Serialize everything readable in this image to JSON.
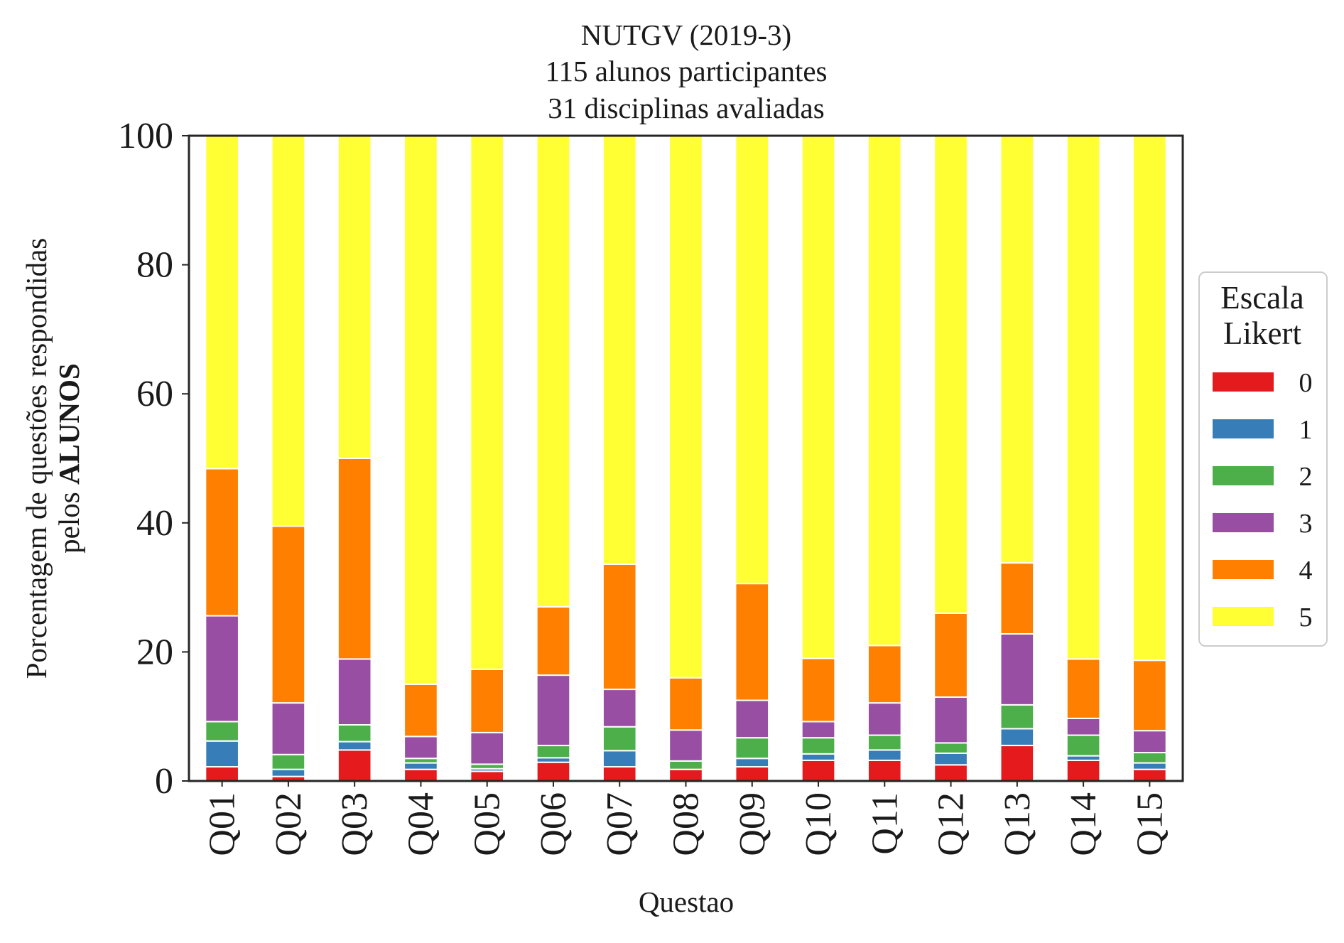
{
  "chart_data": {
    "type": "bar",
    "stacked": true,
    "title": [
      "NUTGV (2019-3)",
      "115 alunos participantes",
      "31 disciplinas avaliadas"
    ],
    "xlabel": "Questao",
    "ylabel": {
      "line1": "Porcentagem de questões respondidas",
      "line2_prefix": "pelos ",
      "line2_bold": "ALUNOS"
    },
    "ylim": [
      0,
      100
    ],
    "yticks": [
      "0",
      "20",
      "40",
      "60",
      "80",
      "100"
    ],
    "grid": false,
    "categories": [
      "Q01",
      "Q02",
      "Q03",
      "Q04",
      "Q05",
      "Q06",
      "Q07",
      "Q08",
      "Q09",
      "Q10",
      "Q11",
      "Q12",
      "Q13",
      "Q14",
      "Q15"
    ],
    "legend": {
      "title": [
        "Escala",
        "Likert"
      ],
      "placement": "right"
    },
    "series": [
      {
        "name": "0",
        "color": "#e41a1c",
        "values": [
          2.2,
          0.7,
          4.8,
          1.8,
          1.5,
          2.9,
          2.2,
          1.8,
          2.2,
          3.2,
          3.2,
          2.5,
          5.5,
          3.2,
          1.8
        ]
      },
      {
        "name": "1",
        "color": "#377eb8",
        "values": [
          4.0,
          1.1,
          1.3,
          1.0,
          0.4,
          0.7,
          2.5,
          0.0,
          1.3,
          1.0,
          1.6,
          1.8,
          2.6,
          0.7,
          1.0
        ]
      },
      {
        "name": "2",
        "color": "#4daf4a",
        "values": [
          3.0,
          2.3,
          2.6,
          0.7,
          0.7,
          1.9,
          3.7,
          1.3,
          3.2,
          2.5,
          2.3,
          1.6,
          3.7,
          3.2,
          1.6
        ]
      },
      {
        "name": "3",
        "color": "#984ea3",
        "values": [
          16.4,
          8.0,
          10.2,
          3.4,
          4.9,
          10.9,
          5.8,
          4.8,
          5.8,
          2.5,
          5.0,
          7.1,
          11.0,
          2.6,
          3.4
        ]
      },
      {
        "name": "4",
        "color": "#ff7f00",
        "values": [
          22.8,
          27.4,
          31.1,
          8.1,
          9.8,
          10.6,
          19.4,
          8.1,
          18.1,
          9.8,
          8.9,
          13.0,
          11.0,
          9.2,
          10.9
        ]
      },
      {
        "name": "5",
        "color": "#ffff33",
        "values": [
          51.6,
          60.5,
          50.0,
          85.0,
          82.7,
          73.0,
          66.4,
          84.0,
          69.4,
          81.0,
          79.0,
          74.0,
          66.2,
          81.1,
          81.3
        ]
      }
    ]
  }
}
